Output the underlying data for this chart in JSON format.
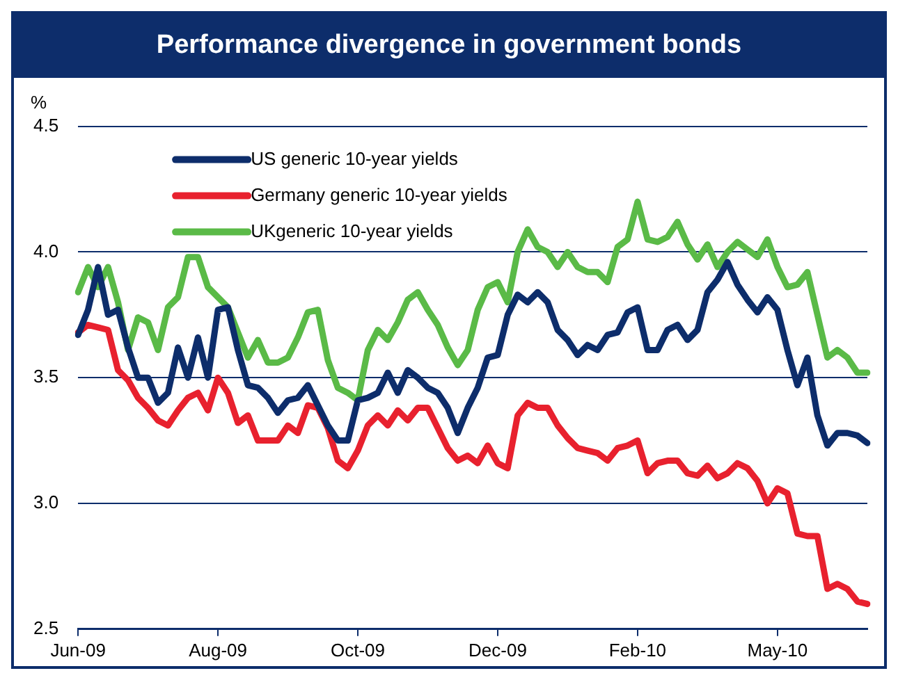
{
  "chart_data": {
    "type": "line",
    "title": "Performance divergence in government bonds",
    "ylabel": "%",
    "ylim": [
      2.5,
      4.5
    ],
    "yticks": [
      {
        "value": 2.5,
        "label": "2.5"
      },
      {
        "value": 3,
        "label": "3.0"
      },
      {
        "value": 3.5,
        "label": "3.5"
      },
      {
        "value": 4,
        "label": "4.0"
      },
      {
        "value": 4.5,
        "label": "4.5"
      }
    ],
    "categories": [
      "Jun-09",
      null,
      null,
      null,
      null,
      null,
      null,
      null,
      null,
      null,
      null,
      null,
      null,
      null,
      "Aug-09",
      null,
      null,
      null,
      null,
      null,
      null,
      null,
      null,
      null,
      null,
      null,
      null,
      null,
      "Oct-09",
      null,
      null,
      null,
      null,
      null,
      null,
      null,
      null,
      null,
      null,
      null,
      null,
      null,
      "Dec-09",
      null,
      null,
      null,
      null,
      null,
      null,
      null,
      null,
      null,
      null,
      null,
      null,
      null,
      "Feb-10",
      null,
      null,
      null,
      null,
      null,
      null,
      null,
      null,
      null,
      null,
      null,
      null,
      null,
      "May-10",
      null,
      null,
      null,
      null,
      null,
      null,
      null,
      null,
      null
    ],
    "grid": "y",
    "legend": "top left",
    "marker": "none",
    "line_style": "solid",
    "series": [
      {
        "name": "US generic 10-year yields",
        "color": "#0d2d6b",
        "values": [
          3.67,
          3.77,
          3.94,
          3.75,
          3.77,
          3.62,
          3.5,
          3.5,
          3.4,
          3.44,
          3.62,
          3.5,
          3.66,
          3.5,
          3.77,
          3.78,
          3.61,
          3.47,
          3.46,
          3.42,
          3.36,
          3.41,
          3.42,
          3.47,
          3.39,
          3.31,
          3.25,
          3.25,
          3.41,
          3.42,
          3.44,
          3.52,
          3.44,
          3.53,
          3.5,
          3.46,
          3.44,
          3.38,
          3.28,
          3.38,
          3.46,
          3.58,
          3.59,
          3.75,
          3.83,
          3.8,
          3.84,
          3.8,
          3.69,
          3.65,
          3.59,
          3.63,
          3.61,
          3.67,
          3.68,
          3.76,
          3.78,
          3.61,
          3.61,
          3.69,
          3.71,
          3.65,
          3.69,
          3.84,
          3.89,
          3.96,
          3.87,
          3.81,
          3.76,
          3.82,
          3.77,
          3.61,
          3.47,
          3.58,
          3.35,
          3.23,
          3.28,
          3.28,
          3.27,
          3.24
        ]
      },
      {
        "name": "Germany generic 10-year yields",
        "color": "#e8212e",
        "values": [
          3.68,
          3.71,
          3.7,
          3.69,
          3.53,
          3.49,
          3.42,
          3.38,
          3.33,
          3.31,
          3.37,
          3.42,
          3.44,
          3.37,
          3.5,
          3.44,
          3.32,
          3.35,
          3.25,
          3.25,
          3.25,
          3.31,
          3.28,
          3.39,
          3.38,
          3.3,
          3.17,
          3.14,
          3.21,
          3.31,
          3.35,
          3.31,
          3.37,
          3.33,
          3.38,
          3.38,
          3.3,
          3.22,
          3.17,
          3.19,
          3.16,
          3.23,
          3.16,
          3.14,
          3.35,
          3.4,
          3.38,
          3.38,
          3.31,
          3.26,
          3.22,
          3.21,
          3.2,
          3.17,
          3.22,
          3.23,
          3.25,
          3.12,
          3.16,
          3.17,
          3.17,
          3.12,
          3.11,
          3.15,
          3.1,
          3.12,
          3.16,
          3.14,
          3.09,
          3.0,
          3.06,
          3.04,
          2.88,
          2.87,
          2.87,
          2.66,
          2.68,
          2.66,
          2.61,
          2.6
        ]
      },
      {
        "name": "UKgeneric 10-year yields",
        "color": "#5aba47",
        "values": [
          3.84,
          3.94,
          3.86,
          3.94,
          3.8,
          3.61,
          3.74,
          3.72,
          3.61,
          3.78,
          3.82,
          3.98,
          3.98,
          3.86,
          3.82,
          3.78,
          3.68,
          3.58,
          3.65,
          3.56,
          3.56,
          3.58,
          3.66,
          3.76,
          3.77,
          3.57,
          3.46,
          3.44,
          3.41,
          3.61,
          3.69,
          3.65,
          3.72,
          3.81,
          3.84,
          3.77,
          3.71,
          3.62,
          3.55,
          3.61,
          3.77,
          3.86,
          3.88,
          3.8,
          4.0,
          4.09,
          4.02,
          4.0,
          3.94,
          4.0,
          3.94,
          3.92,
          3.92,
          3.88,
          4.02,
          4.05,
          4.2,
          4.05,
          4.04,
          4.06,
          4.12,
          4.03,
          3.97,
          4.03,
          3.94,
          4.0,
          4.04,
          4.01,
          3.98,
          4.05,
          3.94,
          3.86,
          3.87,
          3.92,
          3.75,
          3.58,
          3.61,
          3.58,
          3.52,
          3.52
        ]
      }
    ]
  }
}
